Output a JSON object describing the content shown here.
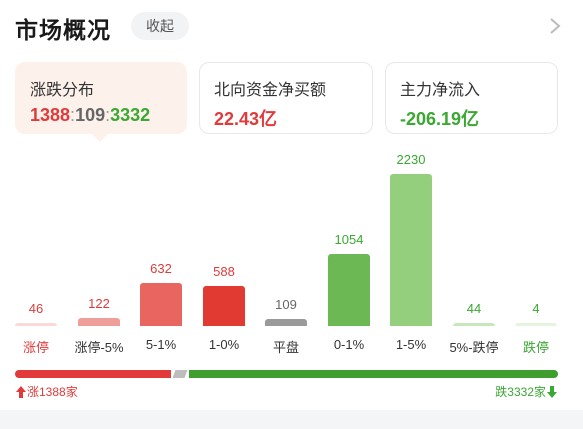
{
  "header": {
    "title": "市场概况",
    "collapse_label": "收起",
    "chevron_icon": "chevron-right-icon"
  },
  "cards": {
    "distribution": {
      "label": "涨跌分布",
      "up": "1388",
      "flat": "109",
      "down": "3332",
      "sep": ":"
    },
    "northbound": {
      "label": "北向资金净买额",
      "value": "22.43亿"
    },
    "main_force": {
      "label": "主力净流入",
      "value": "-206.19亿"
    }
  },
  "chart_data": {
    "type": "bar",
    "categories": [
      "涨停",
      "涨停-5%",
      "5-1%",
      "1-0%",
      "平盘",
      "0-1%",
      "1-5%",
      "5%-跌停",
      "跌停"
    ],
    "values": [
      46,
      122,
      632,
      588,
      109,
      1054,
      2230,
      44,
      4
    ],
    "ylim": [
      0,
      2230
    ]
  },
  "colors": {
    "bars": [
      "#fbd9d6",
      "#ef9f9a",
      "#e86560",
      "#e03a33",
      "#9a9a9a",
      "#6bb855",
      "#94cf7e",
      "#c7e8ba",
      "#e6f4df"
    ],
    "labels": [
      "#e03b3b",
      "#333333",
      "#333333",
      "#333333",
      "#333333",
      "#333333",
      "#333333",
      "#333333",
      "#3aa832"
    ],
    "values": [
      "#e03b3b",
      "#e03b3b",
      "#e03b3b",
      "#e03b3b",
      "#666666",
      "#3aa832",
      "#3aa832",
      "#3aa832",
      "#3aa832"
    ]
  },
  "summary": {
    "up": 1388,
    "flat": 109,
    "down": 3332,
    "up_label": "涨1388家",
    "down_label": "跌3332家"
  }
}
